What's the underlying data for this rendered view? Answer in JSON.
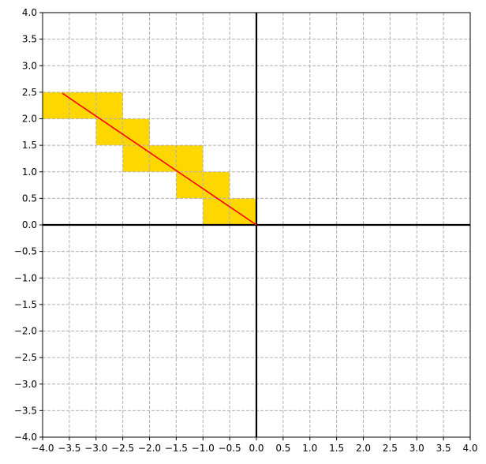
{
  "chart_data": {
    "type": "scatter",
    "title": "",
    "xlabel": "",
    "ylabel": "",
    "xlim": [
      -4.0,
      4.0
    ],
    "ylim": [
      -4.0,
      4.0
    ],
    "grid": true,
    "grid_style": "dashed",
    "tick_step": 0.5,
    "x_ticks": [
      "-4.0",
      "-3.5",
      "-3.0",
      "-2.5",
      "-2.0",
      "-1.5",
      "-1.0",
      "-0.5",
      "0.0",
      "0.5",
      "1.0",
      "1.5",
      "2.0",
      "2.5",
      "3.0",
      "3.5",
      "4.0"
    ],
    "y_ticks": [
      "-4.0",
      "-3.5",
      "-3.0",
      "-2.5",
      "-2.0",
      "-1.5",
      "-1.0",
      "-0.5",
      "0.0",
      "0.5",
      "1.0",
      "1.5",
      "2.0",
      "2.5",
      "3.0",
      "3.5",
      "4.0"
    ],
    "cell_size": 0.5,
    "highlighted_cells": [
      {
        "x": -4.0,
        "y": 2.0
      },
      {
        "x": -3.5,
        "y": 2.0
      },
      {
        "x": -3.0,
        "y": 2.0
      },
      {
        "x": -3.0,
        "y": 1.5
      },
      {
        "x": -2.5,
        "y": 1.5
      },
      {
        "x": -2.5,
        "y": 1.0
      },
      {
        "x": -2.0,
        "y": 1.0
      },
      {
        "x": -1.5,
        "y": 1.0
      },
      {
        "x": -1.5,
        "y": 0.5
      },
      {
        "x": -1.0,
        "y": 0.5
      },
      {
        "x": -1.0,
        "y": 0.0
      },
      {
        "x": -0.5,
        "y": 0.0
      }
    ],
    "segment": {
      "x": [
        -3.63,
        0.0
      ],
      "y": [
        2.48,
        0.0
      ]
    },
    "colors": {
      "cell": "#FFD700",
      "segment": "#FF0000",
      "grid": "#b0b0b0",
      "axis": "#000000"
    }
  }
}
